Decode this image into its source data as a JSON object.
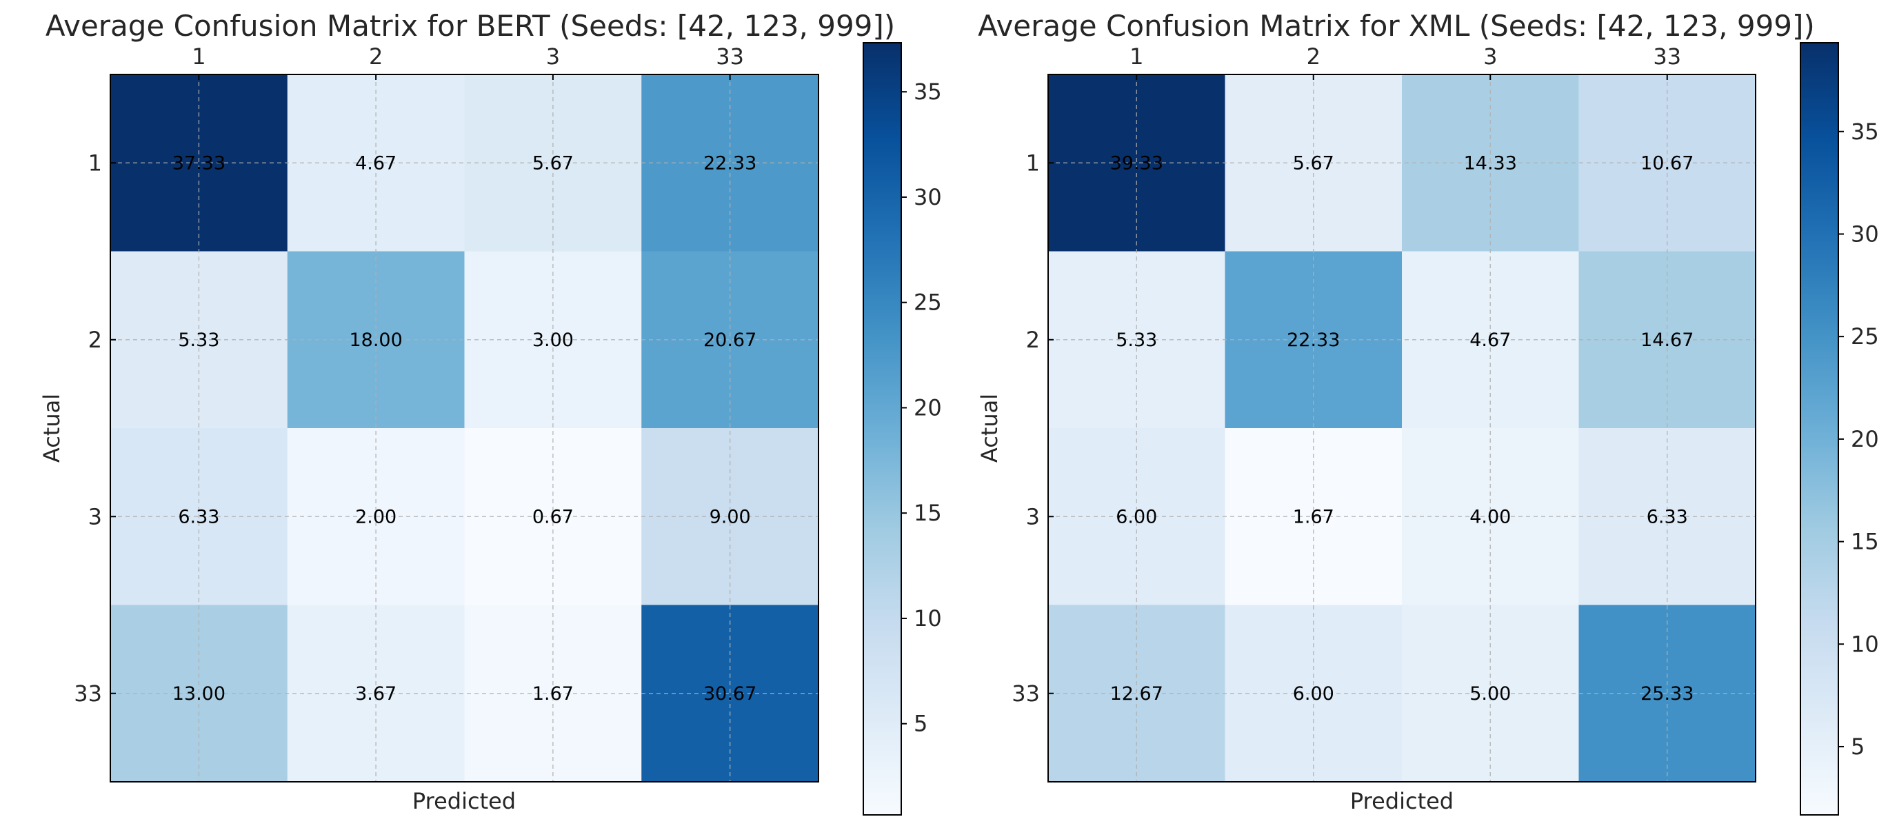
{
  "chart_data": [
    {
      "type": "heatmap",
      "title": "Average Confusion Matrix for BERT (Seeds: [42, 123, 999])",
      "xlabel": "Predicted",
      "ylabel": "Actual",
      "x_categories": [
        "1",
        "2",
        "3",
        "33"
      ],
      "y_categories": [
        "1",
        "2",
        "3",
        "33"
      ],
      "values": [
        [
          37.33,
          4.67,
          5.67,
          22.33
        ],
        [
          5.33,
          18.0,
          3.0,
          20.67
        ],
        [
          6.33,
          2.0,
          0.67,
          9.0
        ],
        [
          13.0,
          3.67,
          1.67,
          30.67
        ]
      ],
      "value_labels": [
        [
          "37.33",
          "4.67",
          "5.67",
          "22.33"
        ],
        [
          "5.33",
          "18.00",
          "3.00",
          "20.67"
        ],
        [
          "6.33",
          "2.00",
          "0.67",
          "9.00"
        ],
        [
          "13.00",
          "3.67",
          "1.67",
          "30.67"
        ]
      ],
      "colorbar": {
        "min": 0.67,
        "max": 37.33,
        "ticks": [
          "5",
          "10",
          "15",
          "20",
          "25",
          "30",
          "35"
        ]
      },
      "colormap": "Blues",
      "x_tick_position": "top",
      "grid": true
    },
    {
      "type": "heatmap",
      "title": "Average Confusion Matrix for XML (Seeds: [42, 123, 999])",
      "xlabel": "Predicted",
      "ylabel": "Actual",
      "x_categories": [
        "1",
        "2",
        "3",
        "33"
      ],
      "y_categories": [
        "1",
        "2",
        "3",
        "33"
      ],
      "values": [
        [
          39.33,
          5.67,
          14.33,
          10.67
        ],
        [
          5.33,
          22.33,
          4.67,
          14.67
        ],
        [
          6.0,
          1.67,
          4.0,
          6.33
        ],
        [
          12.67,
          6.0,
          5.0,
          25.33
        ]
      ],
      "value_labels": [
        [
          "39.33",
          "5.67",
          "14.33",
          "10.67"
        ],
        [
          "5.33",
          "22.33",
          "4.67",
          "14.67"
        ],
        [
          "6.00",
          "1.67",
          "4.00",
          "6.33"
        ],
        [
          "12.67",
          "6.00",
          "5.00",
          "25.33"
        ]
      ],
      "colorbar": {
        "min": 1.67,
        "max": 39.33,
        "ticks": [
          "5",
          "10",
          "15",
          "20",
          "25",
          "30",
          "35"
        ]
      },
      "colormap": "Blues",
      "x_tick_position": "top",
      "grid": true
    }
  ]
}
